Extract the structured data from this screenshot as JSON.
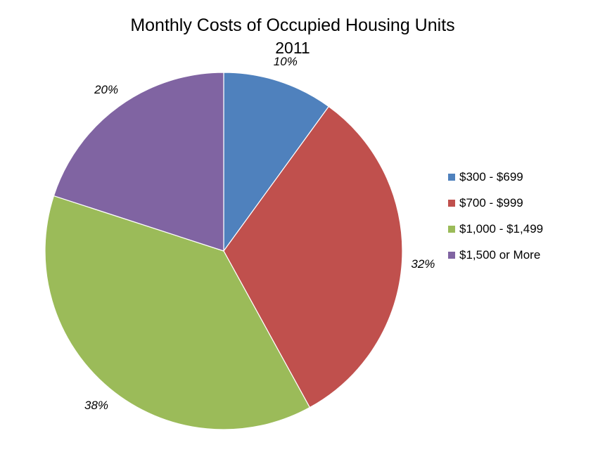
{
  "chart_data": {
    "type": "pie",
    "title": "Monthly Costs of Occupied Housing Units",
    "subtitle": "2011",
    "categories": [
      "$300 - $699",
      "$700 - $999",
      "$1,000 - $1,499",
      "$1,500 or More"
    ],
    "values": [
      10,
      32,
      38,
      20
    ],
    "data_labels": [
      "10%",
      "32%",
      "38%",
      "20%"
    ],
    "colors": [
      "#4F81BD",
      "#C0504D",
      "#9BBB59",
      "#8064A2"
    ],
    "legend_position": "right",
    "start_angle": "12 o'clock",
    "direction": "clockwise"
  }
}
